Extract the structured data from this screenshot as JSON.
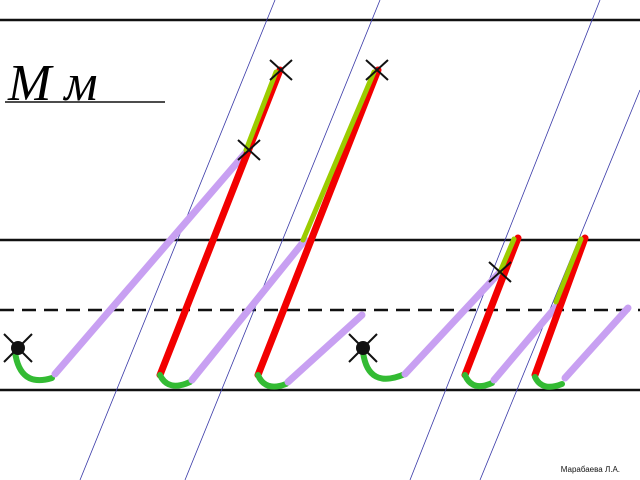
{
  "header": {
    "letters": "М м"
  },
  "footer": {
    "author": "Марабаева Л.А."
  }
}
